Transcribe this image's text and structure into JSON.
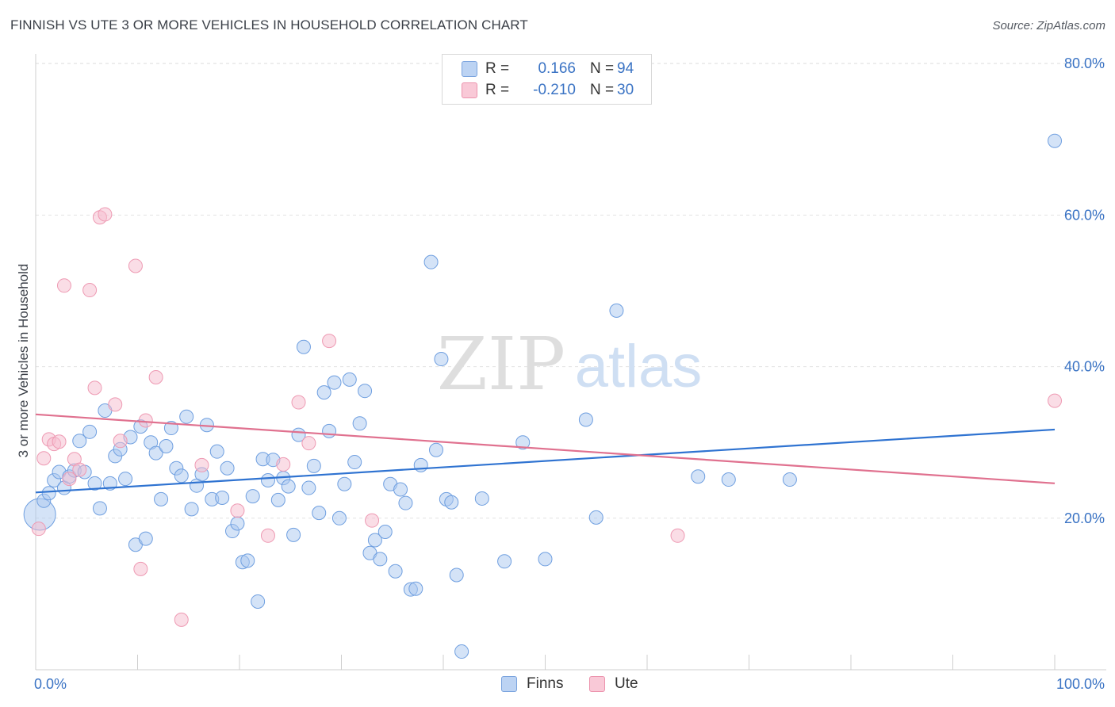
{
  "title": "FINNISH VS UTE 3 OR MORE VEHICLES IN HOUSEHOLD CORRELATION CHART",
  "source": "Source: ZipAtlas.com",
  "watermark": {
    "zip": "ZIP",
    "atlas": "atlas"
  },
  "legend": {
    "r_label": "R =",
    "n_label": "N =",
    "rows": [
      {
        "name": "Finns",
        "r": "0.166",
        "n": "94",
        "fill": "#bcd3f3",
        "stroke": "#7aa3de"
      },
      {
        "name": "Ute",
        "r": "-0.210",
        "n": "30",
        "fill": "#f9c9d7",
        "stroke": "#ec93ad"
      }
    ]
  },
  "chart_data": {
    "type": "scatter",
    "xlabel": "",
    "ylabel": "3 or more Vehicles in Household",
    "xlim": [
      0,
      100
    ],
    "ylim": [
      0,
      80
    ],
    "x_tick_labels": [
      "0.0%",
      "100.0%"
    ],
    "y_tick_labels": [
      "20.0%",
      "40.0%",
      "60.0%",
      "80.0%"
    ],
    "y_ticks": [
      20,
      40,
      60,
      80
    ],
    "grid": true,
    "legend_position": "top-center",
    "series": [
      {
        "name": "Finns",
        "color": "#6f9fe0",
        "trend_color": "#2f73d1",
        "trend": [
          [
            0,
            23.4
          ],
          [
            100,
            31.7
          ]
        ],
        "points": [
          [
            0.4,
            20.5
          ],
          [
            0.8,
            22.3
          ],
          [
            1.3,
            23.3
          ],
          [
            1.8,
            25.0
          ],
          [
            2.3,
            26.1
          ],
          [
            2.8,
            24.0
          ],
          [
            3.3,
            25.5
          ],
          [
            3.8,
            26.3
          ],
          [
            4.3,
            30.2
          ],
          [
            4.8,
            26.1
          ],
          [
            5.3,
            31.4
          ],
          [
            5.8,
            24.6
          ],
          [
            6.3,
            21.3
          ],
          [
            6.8,
            34.2
          ],
          [
            7.3,
            24.6
          ],
          [
            7.8,
            28.2
          ],
          [
            8.3,
            29.1
          ],
          [
            8.8,
            25.2
          ],
          [
            9.3,
            30.7
          ],
          [
            9.8,
            16.5
          ],
          [
            10.3,
            32.1
          ],
          [
            10.8,
            17.3
          ],
          [
            11.3,
            30.0
          ],
          [
            11.8,
            28.6
          ],
          [
            12.3,
            22.5
          ],
          [
            12.8,
            29.5
          ],
          [
            13.3,
            31.9
          ],
          [
            13.8,
            26.6
          ],
          [
            14.3,
            25.6
          ],
          [
            14.8,
            33.4
          ],
          [
            15.3,
            21.2
          ],
          [
            15.8,
            24.3
          ],
          [
            16.3,
            25.8
          ],
          [
            16.8,
            32.3
          ],
          [
            17.3,
            22.5
          ],
          [
            17.8,
            28.8
          ],
          [
            18.3,
            22.7
          ],
          [
            18.8,
            26.6
          ],
          [
            19.3,
            18.3
          ],
          [
            19.8,
            19.3
          ],
          [
            20.3,
            14.2
          ],
          [
            20.8,
            14.4
          ],
          [
            21.3,
            22.9
          ],
          [
            21.8,
            9.0
          ],
          [
            22.3,
            27.8
          ],
          [
            22.8,
            25.0
          ],
          [
            23.3,
            27.7
          ],
          [
            23.8,
            22.4
          ],
          [
            24.3,
            25.3
          ],
          [
            24.8,
            24.2
          ],
          [
            25.3,
            17.8
          ],
          [
            25.8,
            31.0
          ],
          [
            26.3,
            42.6
          ],
          [
            26.8,
            24.0
          ],
          [
            27.3,
            26.9
          ],
          [
            27.8,
            20.7
          ],
          [
            28.3,
            36.6
          ],
          [
            28.8,
            31.5
          ],
          [
            29.3,
            37.9
          ],
          [
            29.8,
            20.0
          ],
          [
            30.3,
            24.5
          ],
          [
            30.8,
            38.3
          ],
          [
            31.3,
            27.4
          ],
          [
            31.8,
            32.5
          ],
          [
            32.3,
            36.8
          ],
          [
            32.8,
            15.4
          ],
          [
            33.3,
            17.1
          ],
          [
            33.8,
            14.6
          ],
          [
            34.3,
            18.2
          ],
          [
            34.8,
            24.5
          ],
          [
            35.3,
            13.0
          ],
          [
            35.8,
            23.8
          ],
          [
            36.3,
            22.0
          ],
          [
            36.8,
            10.6
          ],
          [
            37.3,
            10.7
          ],
          [
            37.8,
            27.0
          ],
          [
            38.8,
            53.8
          ],
          [
            39.3,
            29.0
          ],
          [
            39.8,
            41.0
          ],
          [
            40.3,
            22.5
          ],
          [
            40.8,
            22.1
          ],
          [
            41.3,
            12.5
          ],
          [
            41.8,
            2.4
          ],
          [
            43.8,
            22.6
          ],
          [
            46.0,
            14.3
          ],
          [
            47.8,
            30.0
          ],
          [
            50.0,
            14.6
          ],
          [
            54.0,
            33.0
          ],
          [
            55.0,
            20.1
          ],
          [
            57.0,
            47.4
          ],
          [
            65.0,
            25.5
          ],
          [
            68.0,
            25.1
          ],
          [
            74.0,
            25.1
          ],
          [
            100.0,
            69.8
          ]
        ]
      },
      {
        "name": "Ute",
        "color": "#ee9ab3",
        "trend_color": "#e0718f",
        "trend": [
          [
            0,
            33.7
          ],
          [
            100,
            24.6
          ]
        ],
        "points": [
          [
            0.3,
            18.6
          ],
          [
            0.8,
            27.9
          ],
          [
            1.3,
            30.4
          ],
          [
            1.8,
            29.8
          ],
          [
            2.3,
            30.1
          ],
          [
            2.8,
            50.7
          ],
          [
            3.3,
            25.2
          ],
          [
            3.8,
            27.8
          ],
          [
            4.3,
            26.4
          ],
          [
            5.3,
            50.1
          ],
          [
            5.8,
            37.2
          ],
          [
            6.3,
            59.7
          ],
          [
            6.8,
            60.1
          ],
          [
            7.8,
            35.0
          ],
          [
            8.3,
            30.2
          ],
          [
            9.8,
            53.3
          ],
          [
            10.3,
            13.3
          ],
          [
            10.8,
            32.9
          ],
          [
            11.8,
            38.6
          ],
          [
            14.3,
            6.6
          ],
          [
            16.3,
            27.0
          ],
          [
            19.8,
            21.0
          ],
          [
            22.8,
            17.7
          ],
          [
            24.3,
            27.1
          ],
          [
            25.8,
            35.3
          ],
          [
            26.8,
            29.9
          ],
          [
            28.8,
            43.4
          ],
          [
            33.0,
            19.7
          ],
          [
            63.0,
            17.7
          ],
          [
            100.0,
            35.5
          ]
        ]
      }
    ]
  }
}
